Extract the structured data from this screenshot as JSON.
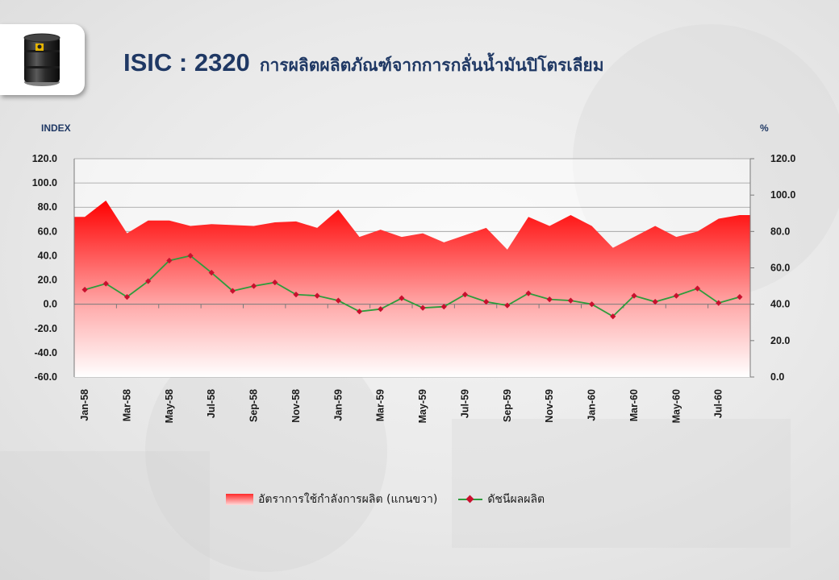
{
  "title": {
    "code": "ISIC : 2320",
    "text": "การผลิตผลิตภัณฑ์จากการกลั่นน้ำมันปิโตรเลียม"
  },
  "icon": "oil-barrel-icon",
  "colors": {
    "title": "#1f3864",
    "area_top": "#ff0000",
    "area_bottom": "#ffffff",
    "line": "#2e9c3c",
    "marker": "#c8102e"
  },
  "chart_data": {
    "type": "line",
    "left_axis": {
      "label": "INDEX",
      "range": [
        -60,
        120
      ],
      "ticks": [
        "120.0",
        "100.0",
        "80.0",
        "60.0",
        "40.0",
        "20.0",
        "0.0",
        "-20.0",
        "-40.0",
        "-60.0"
      ]
    },
    "right_axis": {
      "label": "%",
      "range": [
        0,
        120
      ],
      "ticks": [
        "120.0",
        "100.0",
        "80.0",
        "60.0",
        "40.0",
        "20.0",
        "0.0"
      ]
    },
    "grid": true,
    "legend_position": "bottom",
    "categories": [
      "Jan-58",
      "Feb-58",
      "Mar-58",
      "Apr-58",
      "May-58",
      "Jun-58",
      "Jul-58",
      "Aug-58",
      "Sep-58",
      "Oct-58",
      "Nov-58",
      "Dec-58",
      "Jan-59",
      "Feb-59",
      "Mar-59",
      "Apr-59",
      "May-59",
      "Jun-59",
      "Jul-59",
      "Aug-59",
      "Sep-59",
      "Oct-59",
      "Nov-59",
      "Dec-59",
      "Jan-60",
      "Feb-60",
      "Mar-60",
      "Apr-60",
      "May-60",
      "Jun-60",
      "Jul-60",
      "Aug-60"
    ],
    "category_labels_shown": [
      "Jan-58",
      "Mar-58",
      "May-58",
      "Jul-58",
      "Sep-58",
      "Nov-58",
      "Jan-59",
      "Mar-59",
      "May-59",
      "Jul-59",
      "Sep-59",
      "Nov-59",
      "Jan-60",
      "Mar-60",
      "May-60",
      "Jul-60"
    ],
    "series": [
      {
        "name": "อัตราการใช้กำลังการผลิต (แกนขวา)",
        "type": "area",
        "axis": "right",
        "values": [
          88,
          97,
          79,
          86,
          86,
          83,
          84,
          83.5,
          83,
          85,
          85.5,
          82,
          92,
          77,
          81,
          77,
          79,
          74,
          78,
          82,
          70,
          88,
          83,
          89,
          83,
          71,
          77,
          83,
          77,
          80,
          87,
          89
        ]
      },
      {
        "name": "ดัชนีผลผลิต",
        "type": "line",
        "axis": "left",
        "values": [
          12,
          17,
          6,
          19,
          36,
          40,
          26,
          11,
          15,
          18,
          8,
          7,
          3,
          -6,
          -4,
          5,
          -3,
          -2,
          8,
          2,
          -1,
          9,
          4,
          3,
          0,
          -10,
          7,
          2,
          7,
          13,
          1,
          6
        ]
      }
    ]
  }
}
